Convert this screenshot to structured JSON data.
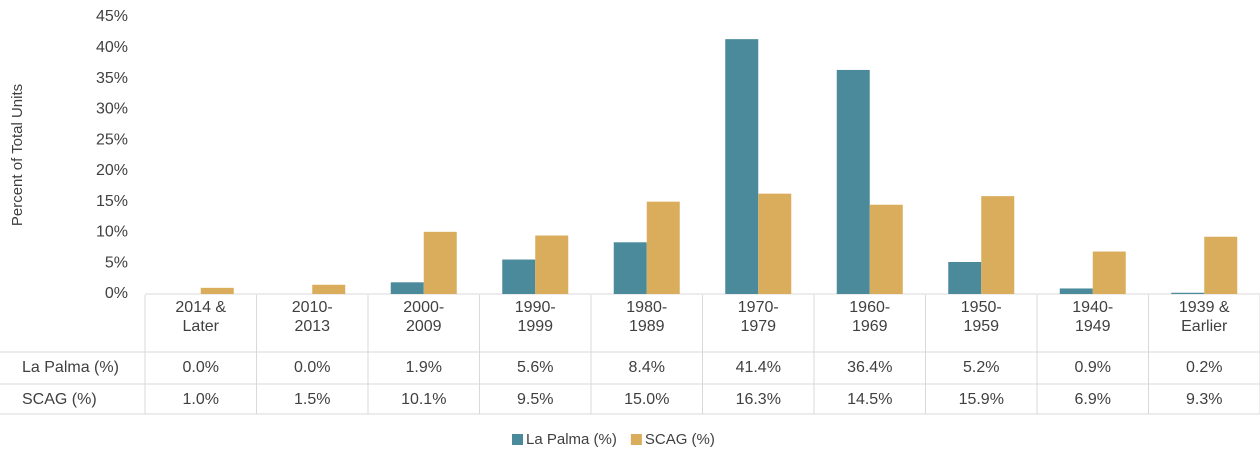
{
  "chart_data": {
    "type": "bar",
    "ylabel": "Percent of Total Units",
    "categories": [
      "2014 & Later",
      "2010-2013",
      "2000-2009",
      "1990-1999",
      "1980-1989",
      "1970-1979",
      "1960-1969",
      "1950-1959",
      "1940-1949",
      "1939 & Earlier"
    ],
    "series": [
      {
        "name": "La Palma (%)",
        "color": "#4a8a9b",
        "values": [
          0.0,
          0.0,
          1.9,
          5.6,
          8.4,
          41.4,
          36.4,
          5.2,
          0.9,
          0.2
        ],
        "value_labels": [
          "0.0%",
          "0.0%",
          "1.9%",
          "5.6%",
          "8.4%",
          "41.4%",
          "36.4%",
          "5.2%",
          "0.9%",
          "0.2%"
        ]
      },
      {
        "name": "SCAG (%)",
        "color": "#d9ad5b",
        "values": [
          1.0,
          1.5,
          10.1,
          9.5,
          15.0,
          16.3,
          14.5,
          15.9,
          6.9,
          9.3
        ],
        "value_labels": [
          "1.0%",
          "1.5%",
          "10.1%",
          "9.5%",
          "15.0%",
          "16.3%",
          "14.5%",
          "15.9%",
          "6.9%",
          "9.3%"
        ]
      }
    ],
    "ylim": [
      0,
      45
    ],
    "yticks": [
      {
        "value": 0,
        "label": "0%"
      },
      {
        "value": 5,
        "label": "5%"
      },
      {
        "value": 10,
        "label": "10%"
      },
      {
        "value": 15,
        "label": "15%"
      },
      {
        "value": 20,
        "label": "20%"
      },
      {
        "value": 25,
        "label": "25%"
      },
      {
        "value": 30,
        "label": "30%"
      },
      {
        "value": 35,
        "label": "35%"
      },
      {
        "value": 40,
        "label": "40%"
      },
      {
        "value": 45,
        "label": "45%"
      }
    ],
    "grid": false,
    "legend": "bottom"
  }
}
